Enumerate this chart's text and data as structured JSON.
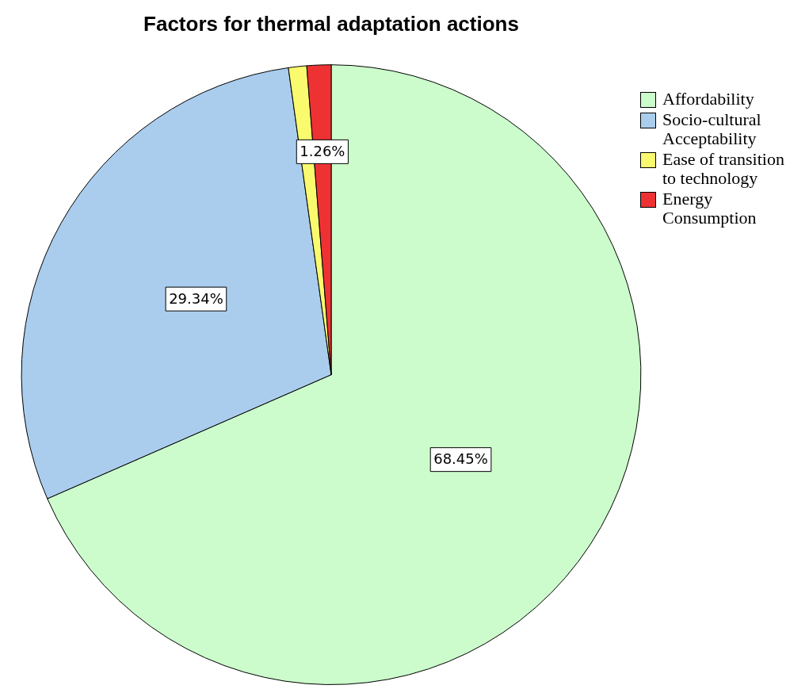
{
  "chart_data": {
    "type": "pie",
    "title": "Factors for thermal adaptation actions",
    "categories": [
      "Affordability",
      "Socio-cultural Acceptability",
      "Ease of transition to technology",
      "Energy Consumption"
    ],
    "values": [
      68.45,
      29.34,
      0.95,
      1.26
    ],
    "colors": [
      "#ccfccc",
      "#aacdee",
      "#fafa6e",
      "#ee3233"
    ],
    "value_labels": [
      "68.45%",
      "29.34%",
      null,
      "1.26%"
    ],
    "legend": "top right"
  }
}
